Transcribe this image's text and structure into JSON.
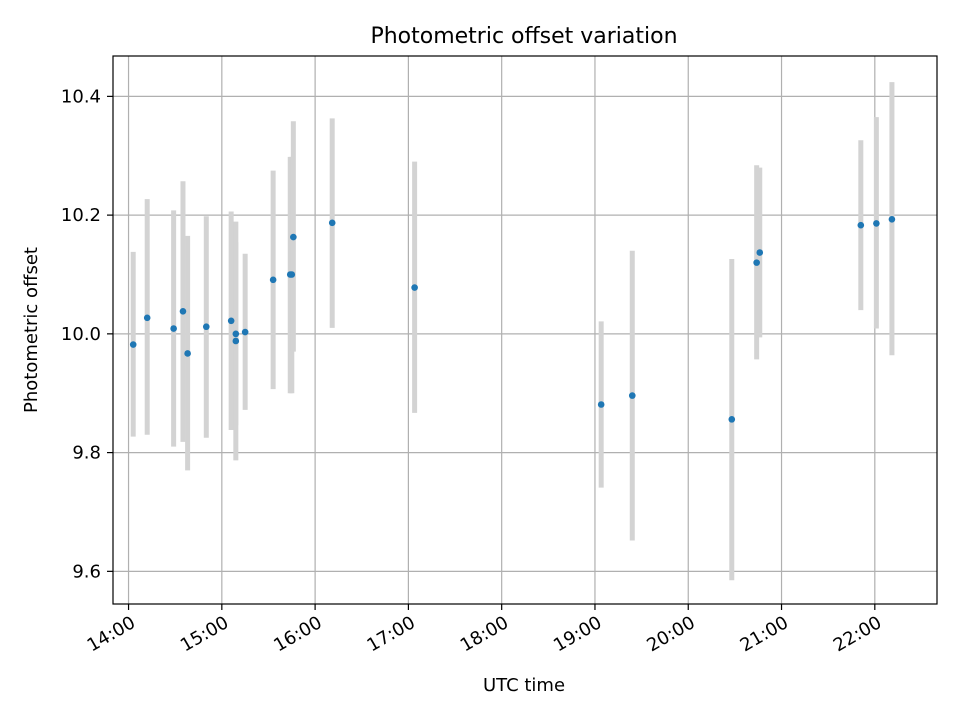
{
  "chart_data": {
    "type": "scatter",
    "title": "Photometric offset variation",
    "xlabel": "UTC time",
    "ylabel": "Photometric offset",
    "xlim": [
      "13:50",
      "22:40"
    ],
    "ylim": [
      9.545,
      10.468
    ],
    "x_ticks": [
      "14:00",
      "15:00",
      "16:00",
      "17:00",
      "18:00",
      "19:00",
      "20:00",
      "21:00",
      "22:00"
    ],
    "y_ticks": [
      "9.6",
      "9.8",
      "10.0",
      "10.2",
      "10.4"
    ],
    "grid": true,
    "point_color": "#1f77b4",
    "errorbar_color": "#d3d3d3",
    "points": [
      {
        "t": "14:03",
        "y": 9.982,
        "lo": 9.827,
        "hi": 10.138
      },
      {
        "t": "14:12",
        "y": 10.027,
        "lo": 9.83,
        "hi": 10.227
      },
      {
        "t": "14:29",
        "y": 10.009,
        "lo": 9.81,
        "hi": 10.208
      },
      {
        "t": "14:35",
        "y": 10.038,
        "lo": 9.818,
        "hi": 10.257
      },
      {
        "t": "14:38",
        "y": 9.967,
        "lo": 9.77,
        "hi": 10.165
      },
      {
        "t": "14:50",
        "y": 10.012,
        "lo": 9.825,
        "hi": 10.198
      },
      {
        "t": "15:06",
        "y": 10.022,
        "lo": 9.838,
        "hi": 10.206
      },
      {
        "t": "15:09",
        "y": 10.0,
        "lo": 9.846,
        "hi": 10.189
      },
      {
        "t": "15:09",
        "y": 9.988,
        "lo": 9.787,
        "hi": 10.154
      },
      {
        "t": "15:15",
        "y": 10.003,
        "lo": 9.872,
        "hi": 10.135
      },
      {
        "t": "15:33",
        "y": 10.091,
        "lo": 9.907,
        "hi": 10.275
      },
      {
        "t": "15:44",
        "y": 10.1,
        "lo": 9.9,
        "hi": 10.298
      },
      {
        "t": "15:45",
        "y": 10.1,
        "lo": 9.9,
        "hi": 10.298
      },
      {
        "t": "15:46",
        "y": 10.163,
        "lo": 9.97,
        "hi": 10.358
      },
      {
        "t": "16:11",
        "y": 10.187,
        "lo": 10.01,
        "hi": 10.363
      },
      {
        "t": "17:04",
        "y": 10.078,
        "lo": 9.867,
        "hi": 10.29
      },
      {
        "t": "19:04",
        "y": 9.881,
        "lo": 9.741,
        "hi": 10.021
      },
      {
        "t": "19:24",
        "y": 9.896,
        "lo": 9.652,
        "hi": 10.14
      },
      {
        "t": "20:28",
        "y": 9.856,
        "lo": 9.585,
        "hi": 10.126
      },
      {
        "t": "20:44",
        "y": 10.12,
        "lo": 9.957,
        "hi": 10.284
      },
      {
        "t": "20:46",
        "y": 10.137,
        "lo": 9.994,
        "hi": 10.28
      },
      {
        "t": "21:51",
        "y": 10.183,
        "lo": 10.04,
        "hi": 10.326
      },
      {
        "t": "22:01",
        "y": 10.186,
        "lo": 10.009,
        "hi": 10.365
      },
      {
        "t": "22:11",
        "y": 10.193,
        "lo": 9.964,
        "hi": 10.424
      }
    ]
  }
}
